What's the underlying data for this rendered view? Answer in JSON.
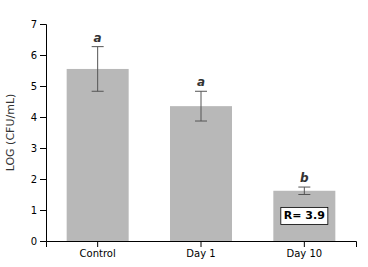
{
  "chart_data": {
    "type": "bar",
    "categories": [
      "Control",
      "Day 1",
      "Day 10"
    ],
    "values": [
      5.55,
      4.35,
      1.62
    ],
    "errors": [
      0.72,
      0.48,
      0.12
    ],
    "color": "#b8b8b8",
    "ylabel": "LOG (CFU/mL)",
    "ylim": [
      0,
      7
    ],
    "yticks": [
      0,
      1,
      2,
      3,
      4,
      5,
      6,
      7
    ],
    "sig_labels": [
      "a",
      "a",
      "b"
    ],
    "annotation": {
      "text": "R= 3.9",
      "category": "Day 10"
    },
    "grid": false
  }
}
